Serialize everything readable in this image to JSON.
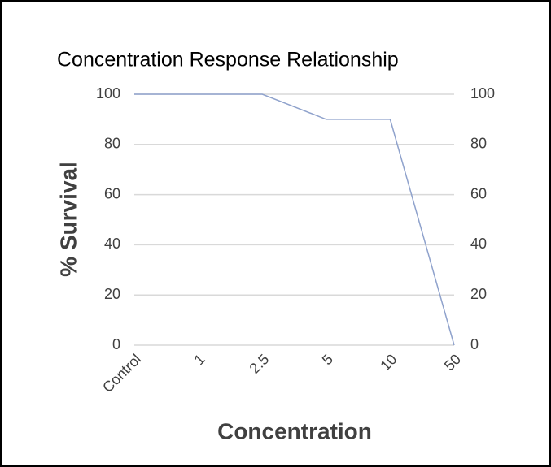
{
  "chart_data": {
    "type": "line",
    "title": "Concentration Response Relationship",
    "xlabel": "Concentration",
    "ylabel": "% Survival",
    "categories": [
      "Control",
      "1",
      "2.5",
      "5",
      "10",
      "50"
    ],
    "series": [
      {
        "name": "% Survival",
        "color": "#8fa2cc",
        "values": [
          100,
          100,
          100,
          90,
          90,
          0
        ]
      }
    ],
    "ylim": [
      0,
      100
    ],
    "yticks": [
      0,
      20,
      40,
      60,
      80,
      100
    ],
    "y2lim": [
      0,
      100
    ],
    "y2ticks": [
      0,
      20,
      40,
      60,
      80,
      100
    ],
    "grid": true
  }
}
